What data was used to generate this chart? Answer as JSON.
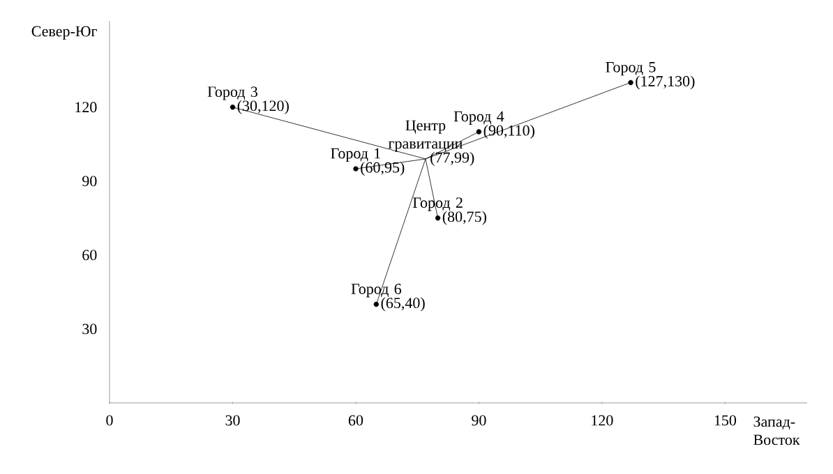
{
  "chart_data": {
    "type": "scatter",
    "xlabel": "Запад-Восток",
    "ylabel": "Север-Юг",
    "xlim": [
      0,
      170
    ],
    "ylim": [
      0,
      155
    ],
    "xticks": [
      0,
      30,
      60,
      90,
      120,
      150
    ],
    "yticks": [
      30,
      60,
      90,
      120
    ],
    "grid": false,
    "series": [
      {
        "marker": "circle",
        "color": "#000000",
        "x": [
          60,
          80,
          30,
          90,
          127,
          65
        ],
        "values": [
          95,
          75,
          120,
          110,
          130,
          40
        ]
      },
      {
        "type": "line",
        "marker": "none",
        "color": "#000000",
        "x": [
          77,
          60,
          null,
          77,
          80,
          null,
          77,
          30,
          null,
          77,
          90,
          null,
          77,
          127,
          null,
          77,
          65
        ],
        "values": [
          99,
          95,
          null,
          99,
          75,
          null,
          99,
          120,
          null,
          99,
          110,
          null,
          99,
          130,
          null,
          99,
          40
        ]
      }
    ],
    "annotations": [
      {
        "text": "Город 1",
        "x": 60,
        "y": 95
      },
      {
        "text": "(60,95)",
        "x": 60,
        "y": 95
      },
      {
        "text": "Город 2",
        "x": 80,
        "y": 75
      },
      {
        "text": "(80,75)",
        "x": 80,
        "y": 75
      },
      {
        "text": "Город 3",
        "x": 30,
        "y": 120
      },
      {
        "text": "(30,120)",
        "x": 30,
        "y": 120
      },
      {
        "text": "Город 4",
        "x": 90,
        "y": 110
      },
      {
        "text": "(90,110)",
        "x": 90,
        "y": 110
      },
      {
        "text": "Город 5",
        "x": 127,
        "y": 130
      },
      {
        "text": "(127,130)",
        "x": 127,
        "y": 130
      },
      {
        "text": "Город 6",
        "x": 65,
        "y": 40
      },
      {
        "text": "(65,40)",
        "x": 65,
        "y": 40
      },
      {
        "text": "Центр гравитации",
        "x": 77,
        "y": 99
      },
      {
        "text": "(77,99)",
        "x": 77,
        "y": 99
      }
    ]
  }
}
